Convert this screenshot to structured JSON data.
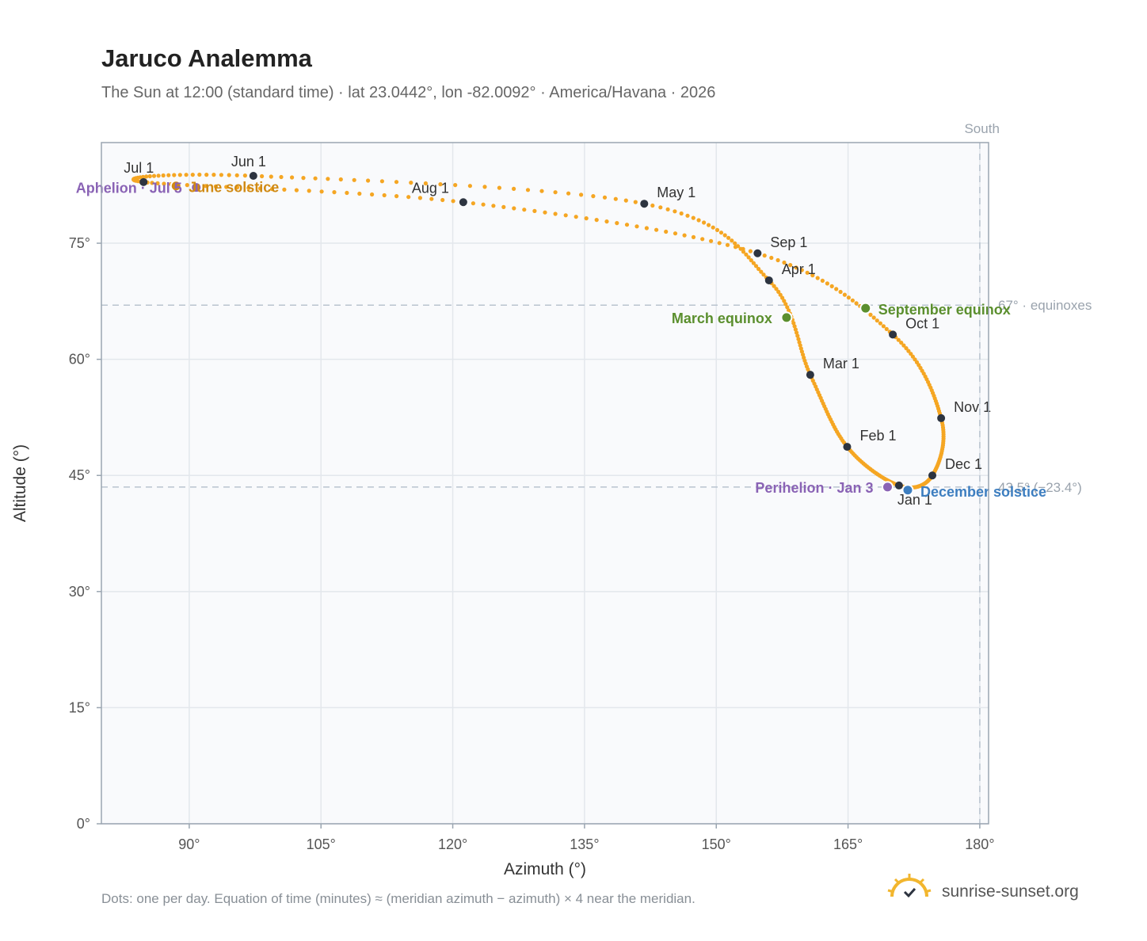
{
  "header": {
    "title": "Jaruco Analemma",
    "subtitle": "The Sun at 12:00 (standard time) · lat 23.0442°, lon -82.0092° · America/Havana · 2026"
  },
  "footer": {
    "note": "Dots: one per day. Equation of time (minutes) ≈ (meridian azimuth − azimuth) × 4 near the meridian.",
    "brand": "sunrise-sunset.org"
  },
  "chart_data": {
    "type": "scatter",
    "title": "Jaruco Analemma",
    "xlabel": "Azimuth (°)",
    "ylabel": "Altitude (°)",
    "xlim": [
      80,
      181
    ],
    "ylim": [
      0,
      88
    ],
    "xticks": [
      90,
      105,
      120,
      135,
      150,
      165,
      180
    ],
    "xtick_labels": [
      "90°",
      "105°",
      "120°",
      "135°",
      "150°",
      "165°",
      "180°"
    ],
    "yticks": [
      0,
      15,
      30,
      45,
      60,
      75
    ],
    "ytick_labels": [
      "0°",
      "15°",
      "30°",
      "45°",
      "60°",
      "75°"
    ],
    "grid": true,
    "colors": {
      "path": "#f5a623",
      "month_marker": "#2d3440",
      "equinox": "#5b8f2e",
      "december_solstice": "#3d7ec0",
      "june_solstice": "#d08a14",
      "apsis": "#8a63b5",
      "reference_line": "#b9c4cf",
      "plot_bg": "#f9fafc"
    },
    "reference_lines": [
      {
        "orientation": "horizontal",
        "value": 67.0,
        "label": "67° · equinoxes"
      },
      {
        "orientation": "horizontal",
        "value": 43.5,
        "label": "43.5° (−23.4°)"
      },
      {
        "orientation": "vertical",
        "value": 180,
        "label": "South"
      }
    ],
    "monthly_points": [
      {
        "label": "Jan 1",
        "az": 170.8,
        "alt": 43.7,
        "label_side": "below"
      },
      {
        "label": "Feb 1",
        "az": 164.9,
        "alt": 48.7,
        "label_side": "right"
      },
      {
        "label": "Mar 1",
        "az": 160.7,
        "alt": 58.0,
        "label_side": "right"
      },
      {
        "label": "Apr 1",
        "az": 156.0,
        "alt": 70.2,
        "label_side": "right"
      },
      {
        "label": "May 1",
        "az": 141.8,
        "alt": 80.1,
        "label_side": "right"
      },
      {
        "label": "Jun 1",
        "az": 97.3,
        "alt": 83.7,
        "label_side": "above"
      },
      {
        "label": "Jul 1",
        "az": 84.8,
        "alt": 82.9,
        "label_side": "above"
      },
      {
        "label": "Aug 1",
        "az": 121.2,
        "alt": 80.3,
        "label_side": "above-left"
      },
      {
        "label": "Sep 1",
        "az": 154.7,
        "alt": 73.7,
        "label_side": "right"
      },
      {
        "label": "Oct 1",
        "az": 170.1,
        "alt": 63.2,
        "label_side": "right"
      },
      {
        "label": "Nov 1",
        "az": 175.6,
        "alt": 52.4,
        "label_side": "right"
      },
      {
        "label": "Dec 1",
        "az": 174.6,
        "alt": 45.0,
        "label_side": "right"
      }
    ],
    "events": [
      {
        "label": "March equinox",
        "az": 158.0,
        "alt": 65.4,
        "kind": "equinox",
        "label_side": "left"
      },
      {
        "label": "September equinox",
        "az": 167.0,
        "alt": 66.6,
        "kind": "equinox",
        "label_side": "right"
      },
      {
        "label": "December solstice",
        "az": 171.8,
        "alt": 43.1,
        "kind": "december_solstice",
        "label_side": "right"
      },
      {
        "label": "June solstice",
        "az": 88.5,
        "alt": 82.4,
        "kind": "june_solstice",
        "label_side": "right"
      },
      {
        "label": "Perihelion · Jan 3",
        "az": 169.5,
        "alt": 43.5,
        "kind": "apsis",
        "label_side": "left"
      },
      {
        "label": "Aphelion · Jul 5",
        "az": 90.8,
        "alt": 82.2,
        "kind": "apsis",
        "label_side": "left"
      }
    ]
  }
}
